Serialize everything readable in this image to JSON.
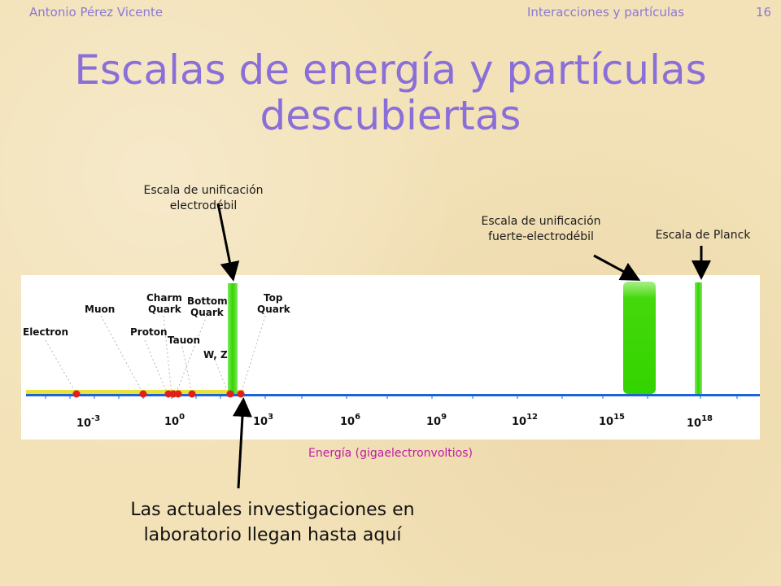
{
  "header": {
    "author": "Antonio Pérez Vicente",
    "topic": "Interacciones y partículas",
    "page": "16"
  },
  "title_line1": "Escalas de energía y partículas",
  "title_line2": "descubiertas",
  "annotations": {
    "electroweak_line1": "Escala de unificación",
    "electroweak_line2": "electrodébil",
    "strong_line1": "Escala de unificación",
    "strong_line2": "fuerte-electrodébil",
    "planck": "Escala de Planck"
  },
  "particles": [
    "Electron",
    "Muon",
    "Proton",
    "Charm",
    "Quark",
    "Tauon",
    "Bottom",
    "Quark",
    "W, Z",
    "Top",
    "Quark"
  ],
  "axis_ticks": [
    {
      "base": "10",
      "exp": "-3"
    },
    {
      "base": "10",
      "exp": "0"
    },
    {
      "base": "10",
      "exp": "3"
    },
    {
      "base": "10",
      "exp": "6"
    },
    {
      "base": "10",
      "exp": "9"
    },
    {
      "base": "10",
      "exp": "12"
    },
    {
      "base": "10",
      "exp": "15"
    },
    {
      "base": "10",
      "exp": "18"
    }
  ],
  "axis_title": "Energía (gigaelectronvoltios)",
  "bottom_note_line1": "Las actuales investigaciones en",
  "bottom_note_line2": "laboratorio llegan hasta aquí",
  "colors": {
    "title": "#8a6fd8",
    "header": "#8b78d6",
    "axis_title": "#c01aa8",
    "band": "#33d400",
    "dot": "#e0201a",
    "axis_blue": "#1a63d8",
    "axis_yellow": "#e8e23a"
  }
}
